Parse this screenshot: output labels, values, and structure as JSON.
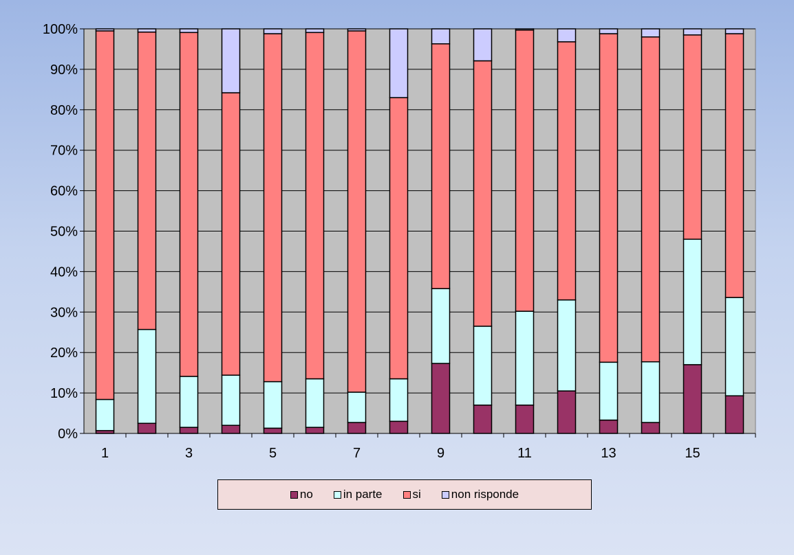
{
  "chart_data": {
    "type": "bar",
    "stacked": "percent",
    "title": "",
    "xlabel": "",
    "ylabel": "",
    "categories": [
      "1",
      "2",
      "3",
      "4",
      "5",
      "6",
      "7",
      "8",
      "9",
      "10",
      "11",
      "12",
      "13",
      "14",
      "15",
      "16"
    ],
    "x_tick_labels": [
      "1",
      "",
      "3",
      "",
      "5",
      "",
      "7",
      "",
      "9",
      "",
      "11",
      "",
      "13",
      "",
      "15",
      ""
    ],
    "ylim": [
      0,
      100
    ],
    "y_ticks": [
      0,
      10,
      20,
      30,
      40,
      50,
      60,
      70,
      80,
      90,
      100
    ],
    "y_tick_labels": [
      "0%",
      "10%",
      "20%",
      "30%",
      "40%",
      "50%",
      "60%",
      "70%",
      "80%",
      "90%",
      "100%"
    ],
    "grid": true,
    "legend_position": "bottom",
    "series": [
      {
        "name": "no",
        "color": "#993366",
        "values": [
          0.7,
          2.5,
          1.5,
          2,
          1.3,
          1.5,
          2.7,
          3,
          17.3,
          7,
          7,
          10.5,
          3.3,
          2.7,
          17,
          9.3
        ]
      },
      {
        "name": "in parte",
        "color": "#ccffff",
        "values": [
          7.7,
          23.2,
          12.6,
          12.4,
          11.5,
          12,
          7.5,
          10.5,
          18.5,
          19.5,
          23.2,
          22.5,
          14.3,
          15,
          31,
          24.3
        ]
      },
      {
        "name": "si",
        "color": "#ff8080",
        "values": [
          91.1,
          73.5,
          85,
          69.8,
          86,
          85.6,
          89.3,
          69.5,
          60.5,
          65.6,
          69.5,
          63.8,
          81.2,
          80.3,
          50.5,
          65.2
        ]
      },
      {
        "name": "non risponde",
        "color": "#ccccff",
        "values": [
          0.5,
          0.8,
          0.9,
          15.8,
          1.2,
          0.9,
          0.5,
          17,
          3.7,
          7.9,
          0.3,
          3.2,
          1.2,
          2,
          1.5,
          1.2
        ]
      }
    ]
  }
}
